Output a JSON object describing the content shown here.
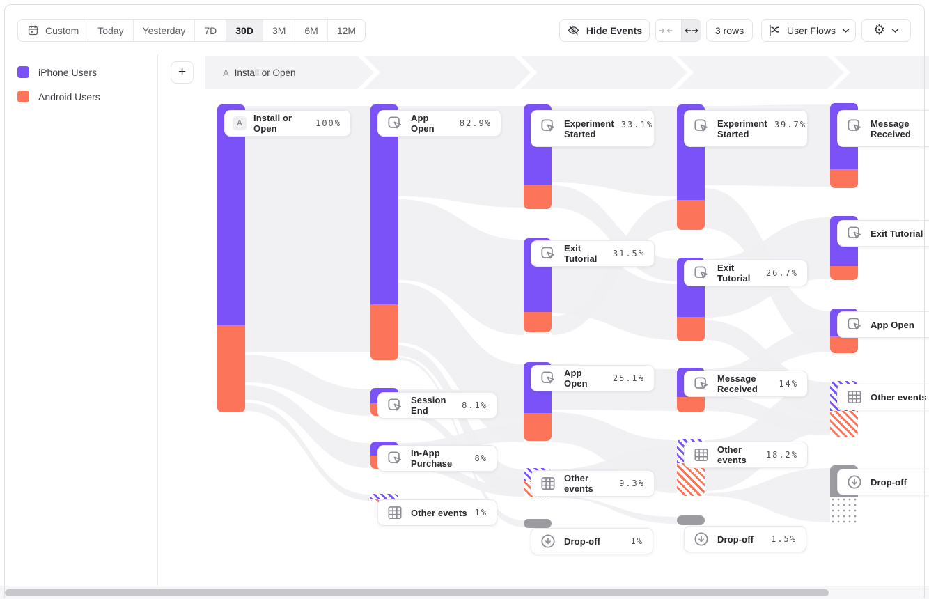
{
  "toolbar": {
    "date_ranges": [
      {
        "label": "Custom",
        "icon": "calendar"
      },
      {
        "label": "Today"
      },
      {
        "label": "Yesterday"
      },
      {
        "label": "7D"
      },
      {
        "label": "30D",
        "selected": true
      },
      {
        "label": "3M"
      },
      {
        "label": "6M"
      },
      {
        "label": "12M"
      }
    ],
    "hide_events": "Hide Events",
    "rows": "3 rows",
    "view": "User Flows"
  },
  "legend": [
    {
      "label": "iPhone Users",
      "color": "#7B52F7"
    },
    {
      "label": "Android Users",
      "color": "#FC7459"
    }
  ],
  "flow_header": {
    "add_button": "+",
    "step_prefix": "A",
    "step_label": "Install or Open"
  },
  "chart_data": {
    "type": "sankey",
    "legend": [
      "iPhone Users",
      "Android Users"
    ],
    "colors": {
      "iphone_users": "#7B52F7",
      "android_users": "#FC7459",
      "dropoff": "#9B9BA1"
    },
    "columns": [
      {
        "step": 1,
        "nodes": [
          {
            "label": "Install or Open",
            "value": "100%",
            "kind": "event",
            "badge": "A"
          }
        ]
      },
      {
        "step": 2,
        "nodes": [
          {
            "label": "App Open",
            "value": "82.9%",
            "kind": "event"
          },
          {
            "label": "Session End",
            "value": "8.1%",
            "kind": "event"
          },
          {
            "label": "In-App Purchase",
            "value": "8%",
            "kind": "event"
          },
          {
            "label": "Other events",
            "value": "1%",
            "kind": "other"
          }
        ]
      },
      {
        "step": 3,
        "nodes": [
          {
            "label": "Experiment Started",
            "value": "33.1%",
            "kind": "event"
          },
          {
            "label": "Exit Tutorial",
            "value": "31.5%",
            "kind": "event"
          },
          {
            "label": "App Open",
            "value": "25.1%",
            "kind": "event"
          },
          {
            "label": "Other events",
            "value": "9.3%",
            "kind": "other"
          },
          {
            "label": "Drop-off",
            "value": "1%",
            "kind": "dropoff"
          }
        ]
      },
      {
        "step": 4,
        "nodes": [
          {
            "label": "Experiment Started",
            "value": "39.7%",
            "kind": "event"
          },
          {
            "label": "Exit Tutorial",
            "value": "26.7%",
            "kind": "event"
          },
          {
            "label": "Message Received",
            "value": "14%",
            "kind": "event"
          },
          {
            "label": "Other events",
            "value": "18.2%",
            "kind": "other"
          },
          {
            "label": "Drop-off",
            "value": "1.5%",
            "kind": "dropoff"
          }
        ]
      },
      {
        "step": 5,
        "nodes": [
          {
            "label": "Message Received",
            "value": "",
            "kind": "event"
          },
          {
            "label": "Exit Tutorial",
            "value": "",
            "kind": "event"
          },
          {
            "label": "App Open",
            "value": "",
            "kind": "event"
          },
          {
            "label": "Other events",
            "value": "",
            "kind": "other"
          },
          {
            "label": "Drop-off",
            "value": "",
            "kind": "dropoff"
          }
        ]
      }
    ]
  }
}
